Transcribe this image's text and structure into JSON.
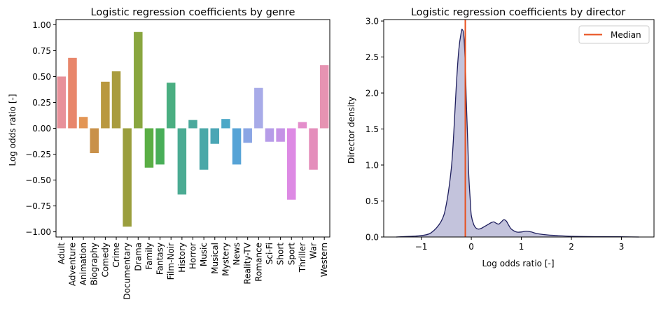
{
  "chart_data": [
    {
      "type": "bar",
      "title": "Logistic regression coefficients by genre",
      "xlabel": "",
      "ylabel": "Log odds ratio [-]",
      "ylim": [
        -1.05,
        1.05
      ],
      "yticks": [
        1.0,
        0.75,
        0.5,
        0.25,
        0.0,
        -0.25,
        -0.5,
        -0.75,
        -1.0
      ],
      "ytick_labels": [
        "1.00",
        "0.75",
        "0.50",
        "0.25",
        "0.00",
        "−0.25",
        "−0.50",
        "−0.75",
        "−1.00"
      ],
      "categories": [
        "Adult",
        "Adventure",
        "Animation",
        "Biography",
        "Comedy",
        "Crime",
        "Documentary",
        "Drama",
        "Family",
        "Fantasy",
        "Film-Noir",
        "History",
        "Horror",
        "Music",
        "Musical",
        "Mystery",
        "News",
        "Reality-TV",
        "Romance",
        "Sci-Fi",
        "Short",
        "Sport",
        "Thriller",
        "War",
        "Western"
      ],
      "values": [
        0.5,
        0.68,
        0.11,
        -0.24,
        0.45,
        0.55,
        -0.95,
        0.93,
        -0.38,
        -0.35,
        0.44,
        -0.64,
        0.08,
        -0.4,
        -0.15,
        0.09,
        -0.35,
        -0.14,
        0.39,
        -0.13,
        -0.13,
        -0.69,
        0.06,
        -0.4,
        0.61
      ],
      "colors": [
        "#e8919a",
        "#e8866b",
        "#e39554",
        "#c9914a",
        "#b9983f",
        "#a99c3e",
        "#9a9e3d",
        "#89a63f",
        "#5aae44",
        "#48ae58",
        "#4aae81",
        "#4bab93",
        "#4aa99c",
        "#4aa8a8",
        "#4aa6b5",
        "#4ca8c7",
        "#56a3d6",
        "#8aa5e4",
        "#a8abe8",
        "#b69ce8",
        "#c593e6",
        "#dd8ae4",
        "#e48ecb",
        "#e48ebb",
        "#e693b2"
      ]
    },
    {
      "type": "area",
      "title": "Logistic regression coefficients by director",
      "xlabel": "Log odds ratio [-]",
      "ylabel": "Director density",
      "xlim": [
        -1.75,
        3.65
      ],
      "ylim": [
        0.0,
        3.02
      ],
      "xticks": [
        -1,
        0,
        1,
        2,
        3
      ],
      "xtick_labels": [
        "−1",
        "0",
        "1",
        "2",
        "3"
      ],
      "yticks": [
        0.0,
        0.5,
        1.0,
        1.5,
        2.0,
        2.5,
        3.0
      ],
      "ytick_labels": [
        "0.0",
        "0.5",
        "1.0",
        "1.5",
        "2.0",
        "2.5",
        "3.0"
      ],
      "series": [
        {
          "name": "Director density",
          "x": [
            -1.5,
            -1.2,
            -1.0,
            -0.8,
            -0.6,
            -0.5,
            -0.4,
            -0.35,
            -0.3,
            -0.25,
            -0.2,
            -0.18,
            -0.15,
            -0.12,
            -0.1,
            -0.07,
            -0.05,
            -0.02,
            0.0,
            0.05,
            0.1,
            0.15,
            0.2,
            0.25,
            0.3,
            0.35,
            0.4,
            0.45,
            0.5,
            0.55,
            0.6,
            0.65,
            0.7,
            0.75,
            0.8,
            0.9,
            1.0,
            1.1,
            1.2,
            1.3,
            1.5,
            1.7,
            2.0,
            2.5,
            3.0,
            3.35
          ],
          "values": [
            0.0,
            0.01,
            0.02,
            0.06,
            0.22,
            0.45,
            0.95,
            1.45,
            2.1,
            2.6,
            2.85,
            2.88,
            2.8,
            2.4,
            1.9,
            1.3,
            0.85,
            0.5,
            0.3,
            0.17,
            0.12,
            0.11,
            0.12,
            0.14,
            0.16,
            0.18,
            0.2,
            0.21,
            0.19,
            0.18,
            0.21,
            0.24,
            0.22,
            0.16,
            0.11,
            0.07,
            0.07,
            0.08,
            0.07,
            0.05,
            0.03,
            0.02,
            0.01,
            0.005,
            0.003,
            0.0
          ],
          "line_color": "#1f1f5e",
          "fill_color": "#c3c3dc"
        }
      ],
      "median": {
        "label": "Median",
        "x": -0.12,
        "color": "#e8501e"
      },
      "legend_position": "top-right"
    }
  ]
}
